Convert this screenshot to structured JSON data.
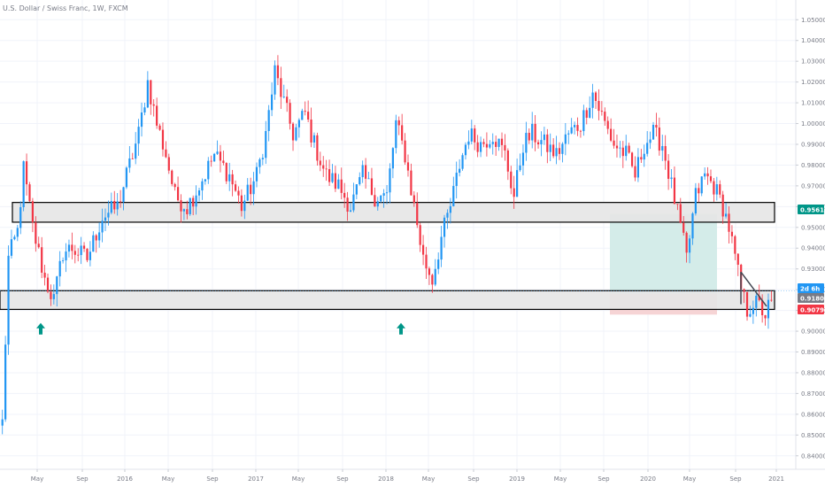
{
  "title": "U.S. Dollar / Swiss Franc, 1W, FXCM",
  "chart_data": {
    "type": "candlestick",
    "symbol": "U.S. Dollar / Swiss Franc",
    "interval": "1W",
    "source": "FXCM",
    "ylim": [
      0.8335,
      1.0595
    ],
    "y_ticks": [
      "1.05000",
      "1.04000",
      "1.03000",
      "1.02000",
      "1.01000",
      "1.00000",
      "0.99000",
      "0.98000",
      "0.97000",
      "0.96000",
      "0.95000",
      "0.94000",
      "0.93000",
      "0.92000",
      "0.91000",
      "0.90000",
      "0.89000",
      "0.88000",
      "0.87000",
      "0.86000",
      "0.85000",
      "0.84000"
    ],
    "x_ticks": [
      "May",
      "Sep",
      "2016",
      "May",
      "Sep",
      "2017",
      "May",
      "Sep",
      "2018",
      "May",
      "Sep",
      "2019",
      "May",
      "Sep",
      "2020",
      "May",
      "Sep",
      "2021"
    ],
    "close_path": [
      [
        0,
        0.856
      ],
      [
        2,
        0.935
      ],
      [
        5,
        0.948
      ],
      [
        7,
        0.978
      ],
      [
        10,
        0.95
      ],
      [
        14,
        0.925
      ],
      [
        17,
        0.915
      ],
      [
        20,
        0.938
      ],
      [
        23,
        0.94
      ],
      [
        28,
        0.935
      ],
      [
        33,
        0.955
      ],
      [
        38,
        0.96
      ],
      [
        42,
        0.98
      ],
      [
        45,
        0.995
      ],
      [
        48,
        1.02
      ],
      [
        51,
        1.0
      ],
      [
        54,
        0.985
      ],
      [
        57,
        0.965
      ],
      [
        61,
        0.96
      ],
      [
        65,
        0.97
      ],
      [
        70,
        0.985
      ],
      [
        75,
        0.975
      ],
      [
        79,
        0.96
      ],
      [
        84,
        0.975
      ],
      [
        87,
        0.995
      ],
      [
        90,
        1.025
      ],
      [
        93,
        1.01
      ],
      [
        96,
        0.995
      ],
      [
        100,
        1.005
      ],
      [
        103,
        0.99
      ],
      [
        107,
        0.975
      ],
      [
        111,
        0.97
      ],
      [
        115,
        0.96
      ],
      [
        119,
        0.975
      ],
      [
        123,
        0.965
      ],
      [
        127,
        0.965
      ],
      [
        130,
        1.0
      ],
      [
        133,
        0.985
      ],
      [
        136,
        0.96
      ],
      [
        139,
        0.935
      ],
      [
        142,
        0.925
      ],
      [
        145,
        0.945
      ],
      [
        148,
        0.96
      ],
      [
        151,
        0.98
      ],
      [
        154,
        0.995
      ],
      [
        158,
        0.99
      ],
      [
        162,
        0.995
      ],
      [
        166,
        0.985
      ],
      [
        169,
        0.965
      ],
      [
        172,
        0.99
      ],
      [
        175,
        0.995
      ],
      [
        179,
        0.99
      ],
      [
        183,
        0.985
      ],
      [
        187,
        0.995
      ],
      [
        191,
        1.0
      ],
      [
        195,
        1.015
      ],
      [
        199,
        1.0
      ],
      [
        202,
        0.99
      ],
      [
        206,
        0.985
      ],
      [
        209,
        0.975
      ],
      [
        212,
        0.99
      ],
      [
        215,
        0.995
      ],
      [
        218,
        0.99
      ],
      [
        221,
        0.97
      ],
      [
        224,
        0.95
      ],
      [
        226,
        0.935
      ],
      [
        229,
        0.965
      ],
      [
        232,
        0.975
      ],
      [
        235,
        0.97
      ],
      [
        238,
        0.96
      ],
      [
        240,
        0.95
      ],
      [
        242,
        0.935
      ],
      [
        244,
        0.92
      ],
      [
        246,
        0.91
      ],
      [
        248,
        0.914
      ],
      [
        250,
        0.912
      ],
      [
        252,
        0.908
      ],
      [
        254,
        0.915
      ]
    ],
    "zones": [
      {
        "kind": "resistance",
        "from": 0.9525,
        "to": 0.962
      },
      {
        "kind": "support",
        "from": 0.9105,
        "to": 0.9195
      }
    ],
    "position": {
      "entry": 0.918,
      "target": 0.9565,
      "stop": 0.908
    },
    "trendline": [
      [
        237,
        0.9285
      ],
      [
        244,
        0.912
      ]
    ],
    "price_labels": [
      {
        "label": "0.95610",
        "value": 0.9561,
        "color": "#009688"
      },
      {
        "label": "2d 6h",
        "value": 0.9195,
        "color": "#2196f3"
      },
      {
        "label": "0.91804",
        "value": 0.91804,
        "color": "#787b86"
      },
      {
        "label": "0.90793",
        "value": 0.90793,
        "color": "#f23645"
      }
    ],
    "markers": [
      {
        "type": "arrow-up",
        "x": 13,
        "value": 0.901
      },
      {
        "type": "arrow-up",
        "x": 129,
        "value": 0.901
      }
    ],
    "colors": {
      "up": "#2196f3",
      "down": "#f23645",
      "arrow": "#009688",
      "zone_fill": "#e6e6e6",
      "target_fill": "#d4ece9",
      "stop_fill": "#f6d4d5"
    }
  }
}
